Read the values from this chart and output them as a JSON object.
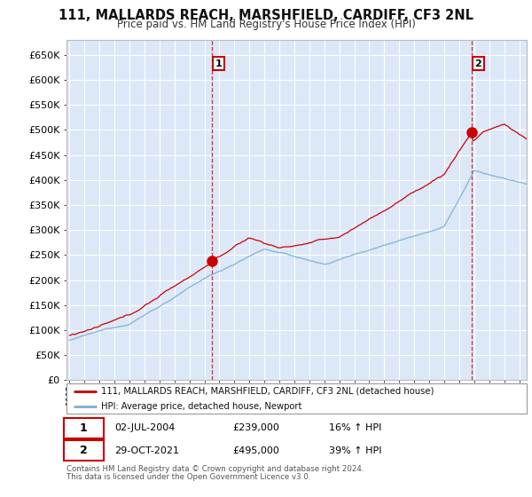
{
  "title": "111, MALLARDS REACH, MARSHFIELD, CARDIFF, CF3 2NL",
  "subtitle": "Price paid vs. HM Land Registry's House Price Index (HPI)",
  "ylabel_ticks": [
    0,
    50000,
    100000,
    150000,
    200000,
    250000,
    300000,
    350000,
    400000,
    450000,
    500000,
    550000,
    600000,
    650000
  ],
  "ylim": [
    0,
    680000
  ],
  "xlim_start": 1994.8,
  "xlim_end": 2025.5,
  "background_color": "#ffffff",
  "plot_bg_color": "#dce8f8",
  "grid_color": "#ffffff",
  "red_line_color": "#cc0000",
  "blue_line_color": "#7aafd4",
  "transaction1_x": 2004.5,
  "transaction1_y": 239000,
  "transaction2_x": 2021.83,
  "transaction2_y": 495000,
  "legend_line1": "111, MALLARDS REACH, MARSHFIELD, CARDIFF, CF3 2NL (detached house)",
  "legend_line2": "HPI: Average price, detached house, Newport",
  "table_row1_label": "1",
  "table_row1_date": "02-JUL-2004",
  "table_row1_price": "£239,000",
  "table_row1_hpi": "16% ↑ HPI",
  "table_row2_label": "2",
  "table_row2_date": "29-OCT-2021",
  "table_row2_price": "£495,000",
  "table_row2_hpi": "39% ↑ HPI",
  "footnote1": "Contains HM Land Registry data © Crown copyright and database right 2024.",
  "footnote2": "This data is licensed under the Open Government Licence v3.0."
}
